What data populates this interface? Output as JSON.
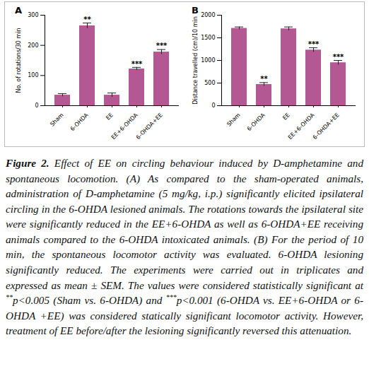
{
  "chart_data": [
    {
      "type": "bar",
      "title": "A",
      "ylabel": "No. of rotations/30 min",
      "categories": [
        "Sham",
        "6-OHDA",
        "EE",
        "EE+6-OHDA",
        "6-OHDA+EE"
      ],
      "values": [
        35,
        265,
        35,
        122,
        178
      ],
      "errors": [
        5,
        9,
        7,
        5,
        8
      ],
      "annotations": [
        null,
        "**",
        null,
        "***",
        "***"
      ],
      "color": "#b35893",
      "ylim": [
        0,
        300
      ],
      "yticks": [
        0,
        100,
        200,
        300
      ],
      "grid": false
    },
    {
      "type": "bar",
      "title": "B",
      "ylabel": "Distance travelled (cm)/10 min",
      "categories": [
        "Sham",
        "6-OHDA",
        "EE",
        "EE+6-OHDA",
        "6-OHDA+EE"
      ],
      "values": [
        1710,
        470,
        1700,
        1230,
        950
      ],
      "errors": [
        30,
        40,
        40,
        50,
        50
      ],
      "annotations": [
        null,
        "**",
        null,
        "***",
        "***"
      ],
      "color": "#b35893",
      "ylim": [
        0,
        2000
      ],
      "yticks": [
        0,
        500,
        1000,
        1500,
        2000
      ],
      "grid": false
    }
  ],
  "caption": [
    {
      "text": "Figure 2.",
      "bold": true
    },
    {
      "text": " Effect of EE on circling behaviour induced by D-amphetamine and spontaneous locomotion. (A) As compared to the sham-operated animals, administration of D-amphetamine (5 mg/kg, i.p.) significantly elicited ipsilateral circling in the 6-OHDA lesioned animals. The rotations towards the ipsilateral site were significantly reduced in the EE+6-OHDA as well as 6-OHDA+EE receiving animals compared to the 6-OHDA intoxicated animals. (B) For the period of 10 min, the spontaneous locomotor activity was evaluated. 6-OHDA lesioning significantly reduced. The experiments were carried out in triplicates and expressed as mean ± SEM. The values were considered statistically significant at "
    },
    {
      "text": "**",
      "sup": true
    },
    {
      "text": "p<0.005 (Sham vs. 6-OHDA) and "
    },
    {
      "text": "***",
      "sup": true
    },
    {
      "text": "p<0.001 (6-OHDA vs. EE+6-OHDA or 6-OHDA +EE) was considered statically significant locomotor activity. However, treatment of EE before/after the lesioning significantly reversed this attenuation."
    }
  ]
}
